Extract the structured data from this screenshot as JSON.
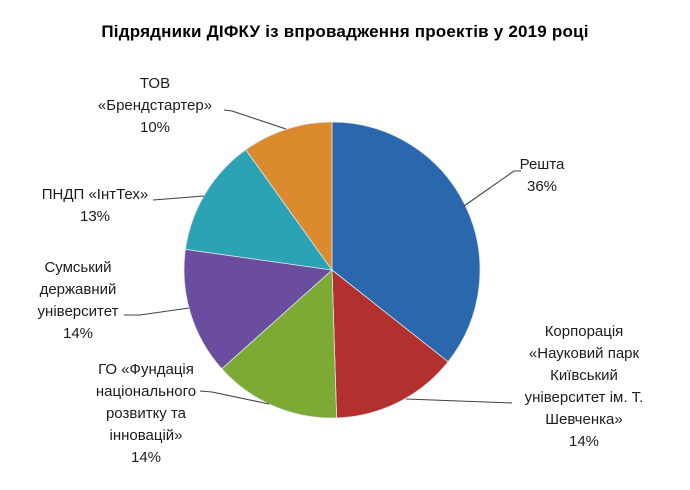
{
  "title": "Підрядники ДІФКУ із впровадження проектів у 2019 році",
  "chart_data": {
    "type": "pie",
    "title": "Підрядники ДІФКУ із впровадження проектів у 2019 році",
    "unit": "%",
    "categories": [
      "Решта",
      "Корпорація «Науковий парк Київський університет ім. Т. Шевченка»",
      "ГО «Фундація національного розвитку та інновацій»",
      "Сумський державний університет",
      "ПНДП «ІнтТех»",
      "ТОВ «Брендстартер»"
    ],
    "values": [
      36,
      14,
      14,
      14,
      13,
      10
    ],
    "colors": [
      "#2B67AC",
      "#B2302D",
      "#7DAA34",
      "#6A4D9E",
      "#2BA3B4",
      "#DB8A2E"
    ],
    "start_angle_deg": 0,
    "direction": "clockwise",
    "legend": "none",
    "labels_style": "outside callouts with leader lines"
  },
  "callouts": {
    "tov": "ТОВ\n«Брендстартер»\n10%",
    "pndp": "ПНДП «ІнтТех»\n13%",
    "sumskyi": "Сумський\nдержавний\nуніверситет\n14%",
    "fundatsia": "ГО «Фундація\nнаціонального\nрозвитку та\nінновацій»\n14%",
    "korporatsia": "Корпорація\n«Науковий парк\nКиївський\nуніверситет ім. Т.\nШевченка»\n14%",
    "reshta": "Решта\n36%"
  }
}
